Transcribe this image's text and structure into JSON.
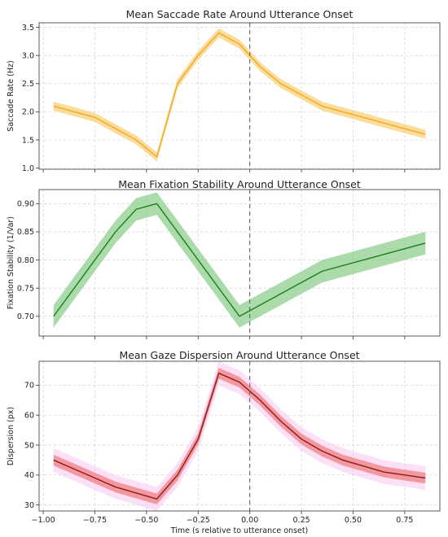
{
  "chart_data": [
    {
      "type": "line",
      "title": "Mean Saccade Rate Around Utterance Onset",
      "xlabel": "",
      "ylabel": "Saccade Rate (Hz)",
      "x": [
        -0.95,
        -0.75,
        -0.55,
        -0.45,
        -0.35,
        -0.25,
        -0.15,
        -0.05,
        0.05,
        0.15,
        0.35,
        0.55,
        0.75,
        0.85
      ],
      "series": [
        {
          "values": [
            2.1,
            1.9,
            1.5,
            1.2,
            2.5,
            3.0,
            3.4,
            3.2,
            2.8,
            2.5,
            2.1,
            1.9,
            1.7,
            1.6
          ],
          "band": 0.08,
          "color": "#f5a623",
          "fill": "#f9d27a"
        }
      ],
      "xlim": [
        -1.02,
        0.92
      ],
      "ylim": [
        0.98,
        3.58
      ],
      "yticks": [
        1.0,
        1.5,
        2.0,
        2.5,
        3.0,
        3.5
      ],
      "ytick_labels": [
        "1.0",
        "1.5",
        "2.0",
        "2.5",
        "3.0",
        "3.5"
      ],
      "vline_x": 0.0,
      "grid": true
    },
    {
      "type": "line",
      "title": "Mean Fixation Stability Around Utterance Onset",
      "xlabel": "",
      "ylabel": "Fixation Stability (1/Var)",
      "x": [
        -0.95,
        -0.65,
        -0.55,
        -0.45,
        -0.05,
        0.35,
        0.85
      ],
      "series": [
        {
          "values": [
            0.7,
            0.85,
            0.89,
            0.9,
            0.7,
            0.78,
            0.83
          ],
          "band": 0.02,
          "color": "#1a7f1a",
          "fill": "#8fcf8f"
        }
      ],
      "xlim": [
        -1.02,
        0.92
      ],
      "ylim": [
        0.665,
        0.925
      ],
      "yticks": [
        0.7,
        0.75,
        0.8,
        0.85,
        0.9
      ],
      "ytick_labels": [
        "0.70",
        "0.75",
        "0.80",
        "0.85",
        "0.90"
      ],
      "vline_x": 0.0,
      "grid": true
    },
    {
      "type": "line",
      "title": "Mean Gaze Dispersion Around Utterance Onset",
      "xlabel": "Time (s relative to utterance onset)",
      "ylabel": "Dispersion (px)",
      "x": [
        -0.95,
        -0.85,
        -0.75,
        -0.65,
        -0.55,
        -0.45,
        -0.35,
        -0.25,
        -0.15,
        -0.05,
        0.05,
        0.15,
        0.25,
        0.35,
        0.45,
        0.55,
        0.65,
        0.75,
        0.85
      ],
      "series": [
        {
          "values": [
            45,
            42,
            39,
            36,
            34,
            32,
            40,
            52,
            74,
            71,
            65,
            58,
            52,
            48,
            45,
            43,
            41,
            40,
            39
          ],
          "band": 1.8,
          "color": "#8b1a1a",
          "fill": "#f08080",
          "glow": "#f7c6f2"
        }
      ],
      "xlim": [
        -1.02,
        0.92
      ],
      "ylim": [
        28,
        78
      ],
      "yticks": [
        30,
        40,
        50,
        60,
        70
      ],
      "ytick_labels": [
        "30",
        "40",
        "50",
        "60",
        "70"
      ],
      "xticks": [
        -1.0,
        -0.75,
        -0.5,
        -0.25,
        0.0,
        0.25,
        0.5,
        0.75
      ],
      "xtick_labels": [
        "−1.00",
        "−0.75",
        "−0.50",
        "−0.25",
        "0.00",
        "0.25",
        "0.50",
        "0.75"
      ],
      "vline_x": 0.0,
      "grid": true
    }
  ]
}
